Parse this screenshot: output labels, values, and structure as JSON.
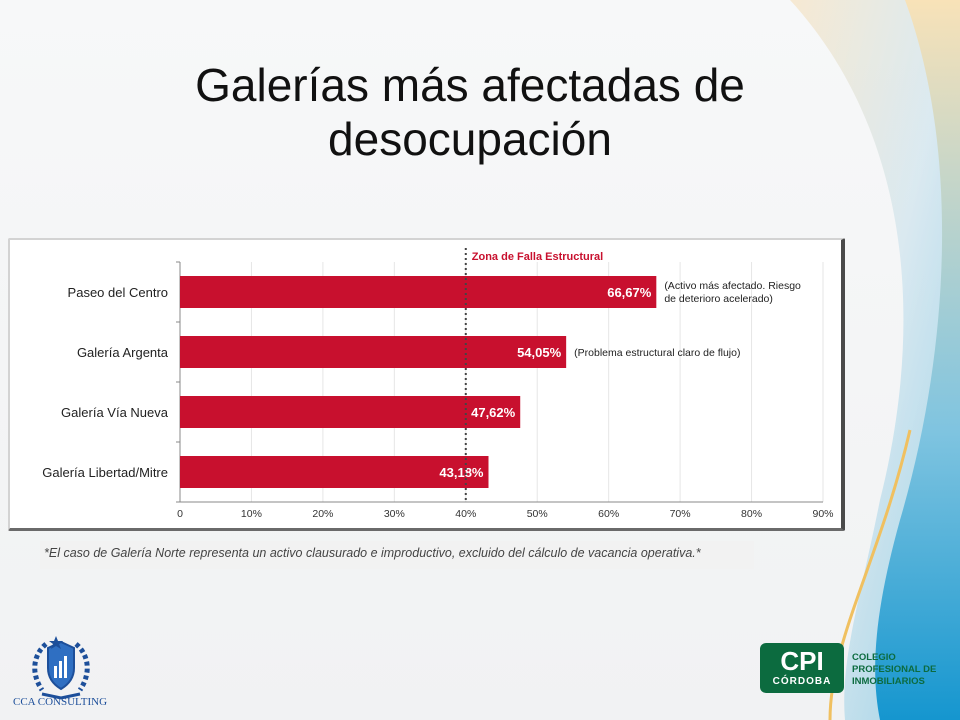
{
  "slide": {
    "title": "Galerías más afectadas de desocupación",
    "footnote": "*El caso de Galería Norte representa un activo clausurado e improductivo, excluido del cálculo de vacancia operativa.*"
  },
  "chart_data": {
    "type": "bar",
    "orientation": "horizontal",
    "categories": [
      "Paseo del Centro",
      "Galería Argenta",
      "Galería Vía Nueva",
      "Galería Libertad/Mitre"
    ],
    "values": [
      66.67,
      54.05,
      47.62,
      43.18
    ],
    "value_labels": [
      "66,67%",
      "54,05%",
      "47,62%",
      "43,18%"
    ],
    "annotations": [
      "(Activo más afectado. Riesgo de deterioro acelerado)",
      "(Problema estructural claro de flujo)",
      "",
      ""
    ],
    "xlim": [
      0,
      90
    ],
    "xticks": [
      0,
      10,
      20,
      30,
      40,
      50,
      60,
      70,
      80,
      90
    ],
    "xtick_labels": [
      "0",
      "10%",
      "20%",
      "30%",
      "40%",
      "50%",
      "60%",
      "70%",
      "80%",
      "90%"
    ],
    "reference_line": {
      "value": 40,
      "label": "Zona de Falla Estructural",
      "style": "dotted"
    },
    "bar_color": "#c8102e",
    "grid": true
  },
  "logos": {
    "cca": "CCA CONSULTING",
    "cpi_main": "CPI",
    "cpi_sub": "CÓRDOBA",
    "cpi_side": [
      "COLEGIO",
      "PROFESIONAL DE",
      "INMOBILIARIOS"
    ],
    "colors": {
      "cpi_green": "#0c6b3f",
      "cca_blue": "#1d4f9a"
    }
  }
}
